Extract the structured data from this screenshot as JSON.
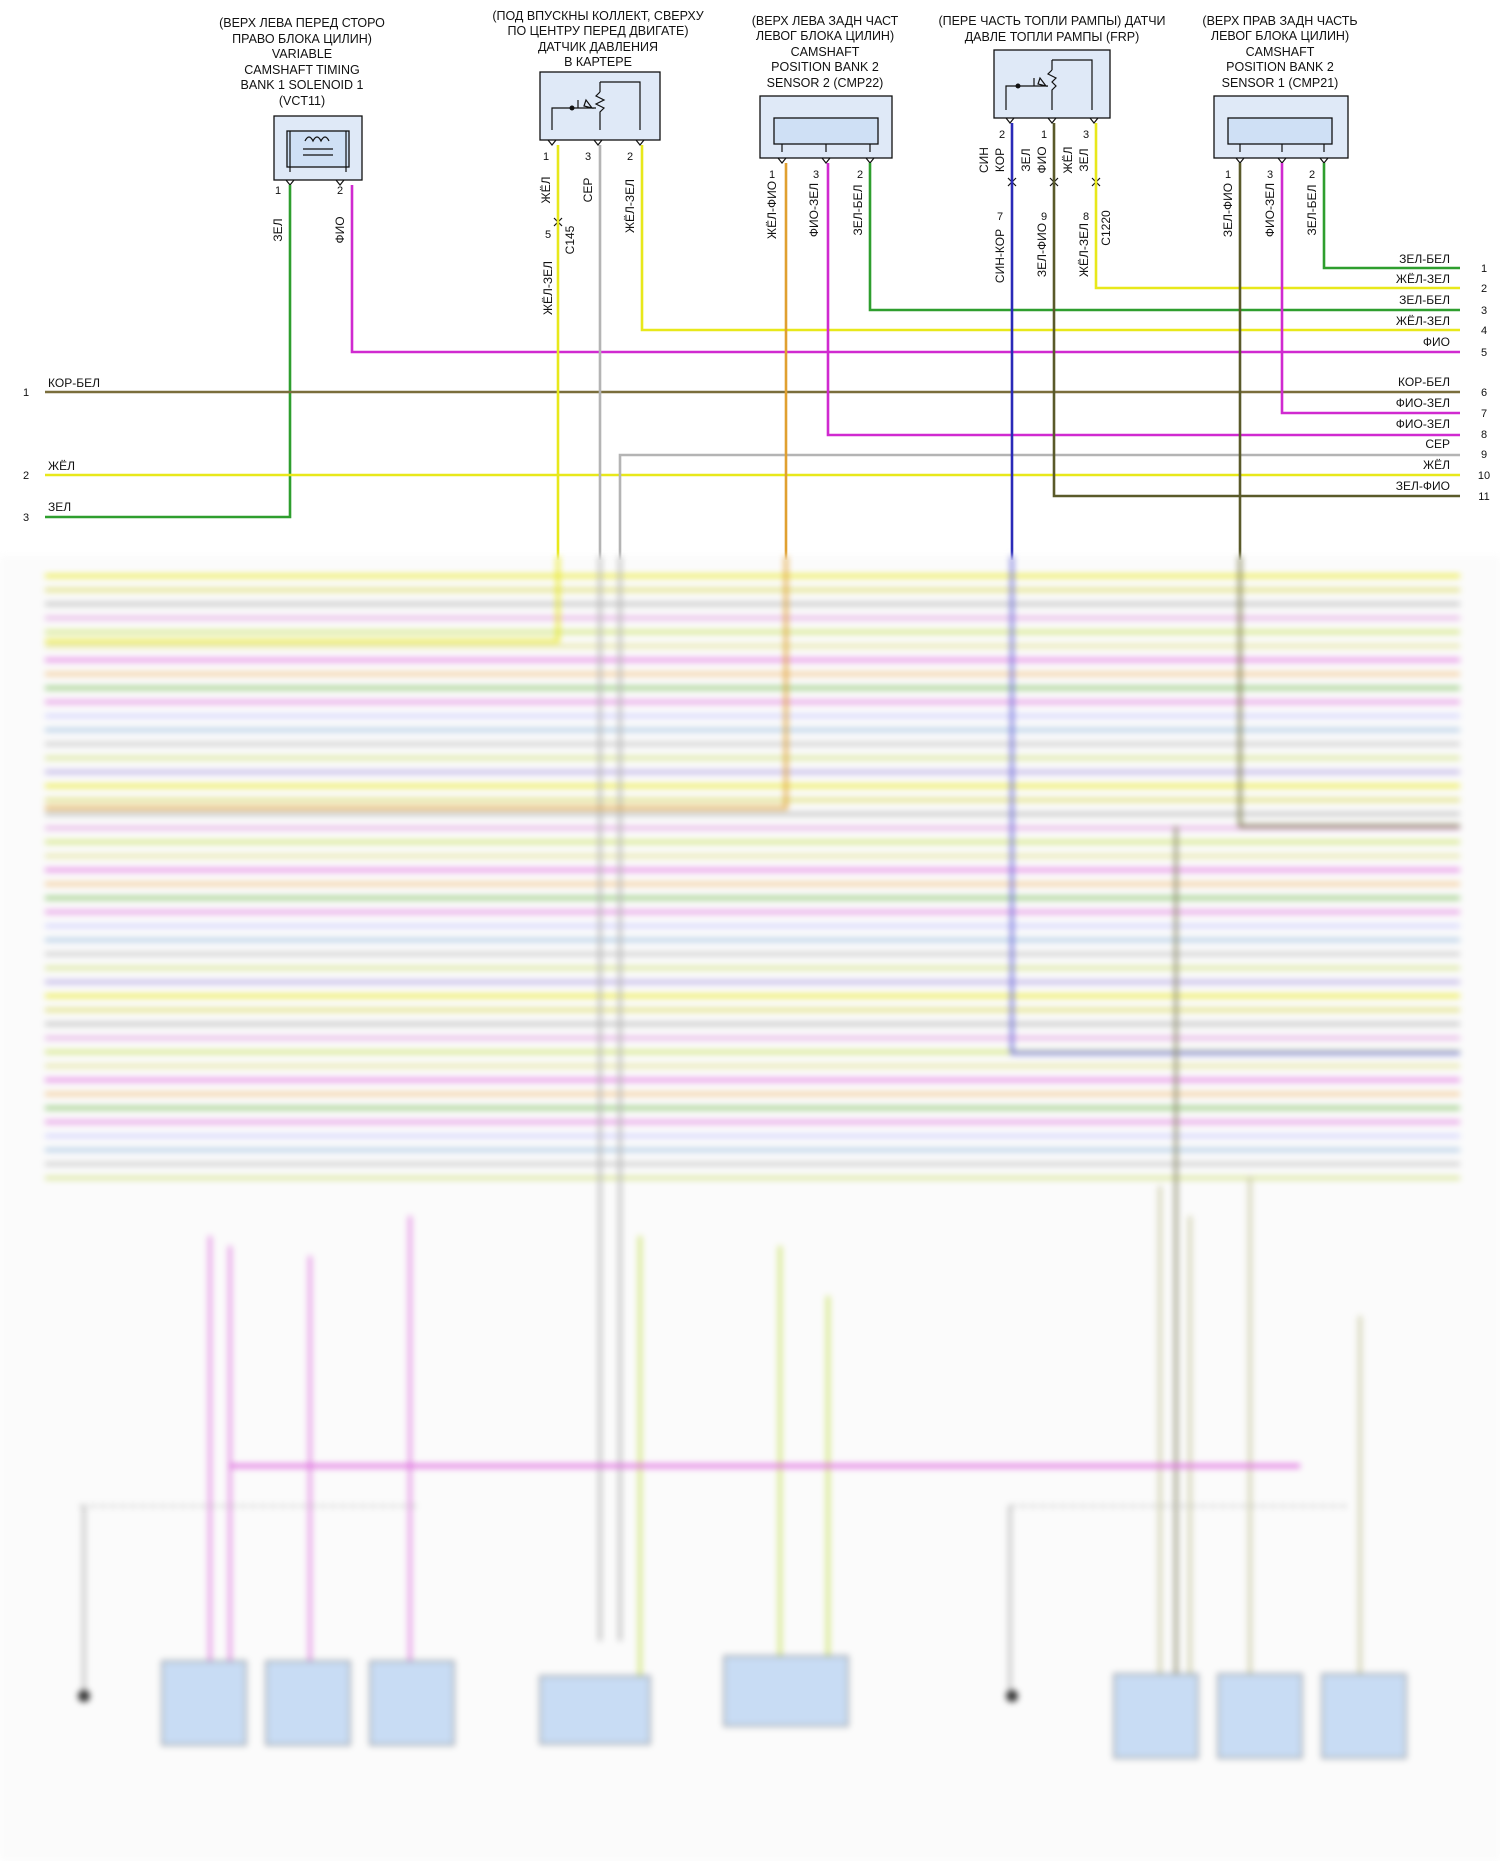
{
  "components": {
    "vct11": {
      "line1": "(ВЕРХ ЛЕВА ПЕРЕД СТОРО",
      "line2": "ПРАВО БЛОКА ЦИЛИН)",
      "line3": "VARIABLE",
      "line4": "CAMSHAFT TIMING",
      "line5": "BANK 1 SOLENOID 1",
      "line6": "(VCT11)",
      "pin1": "1",
      "pin2": "2",
      "wire1": "ЗЕЛ",
      "wire2": "ФИО"
    },
    "crankcase": {
      "line1": "(ПОД ВПУСКНЫ КОЛЛЕКТ, СВЕРХУ",
      "line2": "ПО ЦЕНТРУ ПЕРЕД ДВИГАТЕ)",
      "line3": "ДАТЧИК ДАВЛЕНИЯ",
      "line4": "В КАРТЕРЕ",
      "pin1": "1",
      "pin3": "3",
      "pin2": "2",
      "wire1": "ЖЁЛ",
      "wire3": "СЕР",
      "wire2": "ЖЁЛ-ЗЕЛ",
      "conn_pin": "5",
      "conn_name": "C145",
      "wire_below": "ЖЁЛ-ЗЕЛ"
    },
    "cmp22": {
      "line1": "(ВЕРХ ЛЕВА ЗАДН ЧАСТ",
      "line2": "ЛЕВОГ БЛОКА ЦИЛИН)",
      "line3": "CAMSHAFT",
      "line4": "POSITION BANK 2",
      "line5": "SENSOR 2 (CMP22)",
      "pin1": "1",
      "pin3": "3",
      "pin2": "2",
      "wire1": "ЖЁЛ-ФИО",
      "wire3": "ФИО-ЗЕЛ",
      "wire2": "ЗЕЛ-БЕЛ"
    },
    "frp": {
      "line1": "(ПЕРЕ ЧАСТЬ ТОПЛИ РАМПЫ) ДАТЧИ",
      "line2": "ДАВЛЕ ТОПЛИ РАМПЫ (FRP)",
      "pin2": "2",
      "pin1": "1",
      "pin3": "3",
      "wire2a": "СИН",
      "wire2b": "КОР",
      "wire1a": "ЗЕЛ",
      "wire1b": "ФИО",
      "wire3a": "ЖЁЛ",
      "wire3b": "ЗЕЛ",
      "cpin7": "7",
      "cpin9": "9",
      "cpin8": "8",
      "cwire7": "СИН-КОР",
      "cwire9": "ЗЕЛ-ФИО",
      "cwire8": "ЖЁЛ-ЗЕЛ",
      "conn_name": "C1220"
    },
    "cmp21": {
      "line1": "(ВЕРХ ПРАВ ЗАДН ЧАСТЬ",
      "line2": "ЛЕВОГ БЛОКА ЦИЛИН)",
      "line3": "CAMSHAFT",
      "line4": "POSITION BANK 2",
      "line5": "SENSOR 1 (CMP21)",
      "pin1": "1",
      "pin3": "3",
      "pin2": "2",
      "wire1": "ЗЕЛ-ФИО",
      "wire3": "ФИО-ЗЕЛ",
      "wire2": "ЗЕЛ-БЕЛ"
    }
  },
  "left_terminals": [
    {
      "num": "1",
      "label": "КОР-БЕЛ"
    },
    {
      "num": "2",
      "label": "ЖЁЛ"
    },
    {
      "num": "3",
      "label": "ЗЕЛ"
    }
  ],
  "right_terminals": [
    {
      "num": "1",
      "label": "ЗЕЛ-БЕЛ"
    },
    {
      "num": "2",
      "label": "ЖЁЛ-ЗЕЛ"
    },
    {
      "num": "3",
      "label": "ЗЕЛ-БЕЛ"
    },
    {
      "num": "4",
      "label": "ЖЁЛ-ЗЕЛ"
    },
    {
      "num": "5",
      "label": "ФИО"
    },
    {
      "num": "6",
      "label": "КОР-БЕЛ"
    },
    {
      "num": "7",
      "label": "ФИО-ЗЕЛ"
    },
    {
      "num": "8",
      "label": "ФИО-ЗЕЛ"
    },
    {
      "num": "9",
      "label": "СЕР"
    },
    {
      "num": "10",
      "label": "ЖЁЛ"
    },
    {
      "num": "11",
      "label": "ЗЕЛ-ФИО"
    }
  ],
  "colors": {
    "green": "#2e9e2e",
    "yellow": "#e8e81a",
    "gray": "#b4b4b4",
    "violet": "#d02ad0",
    "brownwhite": "#7a6e3c",
    "orange": "#e0a030",
    "blue": "#2a2ab8",
    "olive": "#5a5a2a",
    "lightgreen": "#b8e060",
    "olivegreen": "#7a8a3a"
  }
}
